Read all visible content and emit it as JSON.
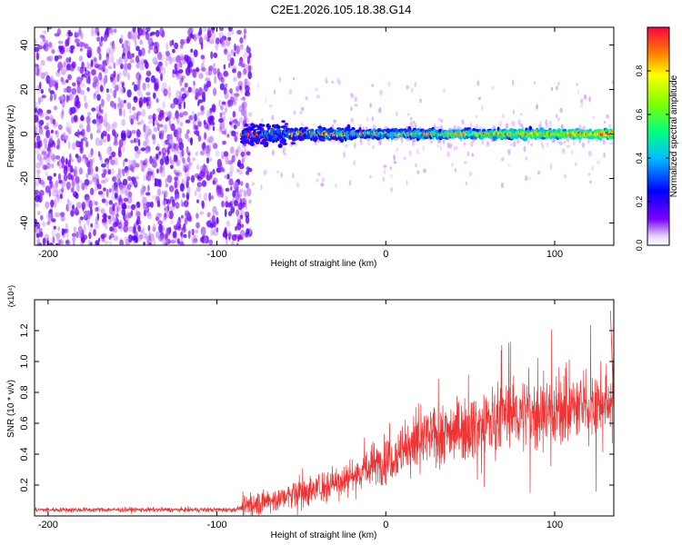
{
  "title": "C2E1.2026.105.18.38.G14",
  "chart_data": [
    {
      "type": "heatmap",
      "xlabel": "Height of straight line (km)",
      "ylabel": "Frequency (Hz)",
      "xlim": [
        -208,
        135
      ],
      "ylim": [
        -50,
        48
      ],
      "xticks": [
        -200,
        -100,
        0,
        100
      ],
      "yticks": [
        -40,
        -20,
        0,
        20,
        40
      ],
      "signal_onset_km": -85,
      "line_frequency_hz": 0,
      "colorbar": {
        "label": "Normalized spectral amplitude",
        "range": [
          0,
          1
        ],
        "ticks": [
          0.0,
          0.2,
          0.4,
          0.6,
          0.8
        ],
        "colors": [
          "#ffffff",
          "#7a00ff",
          "#0000ff",
          "#00bfff",
          "#00ff80",
          "#80ff00",
          "#ffff00",
          "#ff8000",
          "#ff0040"
        ]
      }
    },
    {
      "type": "line",
      "xlabel": "Height of straight line (km)",
      "ylabel": "SNR (10 * v/v)",
      "yscale_label": "(x10⁴)",
      "xlim": [
        -208,
        135
      ],
      "ylim": [
        0,
        1.4
      ],
      "xticks": [
        -200,
        -100,
        0,
        100
      ],
      "yticks": [
        0.2,
        0.4,
        0.6,
        0.8,
        1.0,
        1.2
      ],
      "color": "#ee3333",
      "trend": {
        "x": [
          -208,
          -90,
          -80,
          -60,
          -40,
          -20,
          0,
          10,
          20,
          30,
          40,
          50,
          60,
          70,
          80,
          100,
          120,
          135
        ],
        "y": [
          0.04,
          0.04,
          0.07,
          0.12,
          0.18,
          0.26,
          0.36,
          0.42,
          0.48,
          0.53,
          0.56,
          0.58,
          0.6,
          0.66,
          0.66,
          0.68,
          0.71,
          0.75
        ]
      },
      "peak": {
        "x": 133,
        "y": 1.33
      }
    }
  ]
}
